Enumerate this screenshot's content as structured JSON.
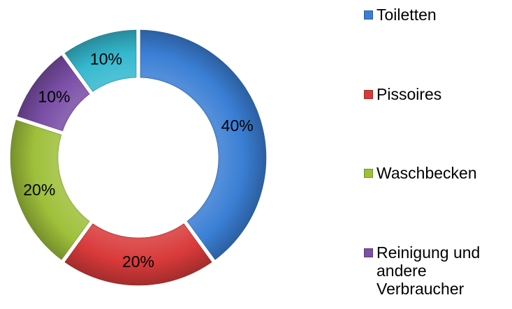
{
  "chart_data": {
    "type": "pie",
    "variant": "exploded-doughnut",
    "categories": [
      "Toiletten",
      "Pissoires",
      "Waschbecken",
      "Reinigung und andere Verbraucher",
      "Unlabeled slice"
    ],
    "values": [
      40,
      20,
      20,
      10,
      10
    ],
    "value_labels": [
      "40%",
      "20%",
      "20%",
      "10%",
      "10%"
    ],
    "colors": [
      "#3a7fd5",
      "#d93a3a",
      "#9ec03a",
      "#7a4fa6",
      "#35b9cf"
    ],
    "legend_position": "right",
    "legend": [
      {
        "label": "Toiletten",
        "color": "#3a7fd5"
      },
      {
        "label": "Pissoires",
        "color": "#d93a3a"
      },
      {
        "label": "Waschbecken",
        "color": "#9ec03a"
      },
      {
        "label": "Reinigung und\nandere\nVerbraucher",
        "color": "#7a4fa6"
      }
    ]
  }
}
